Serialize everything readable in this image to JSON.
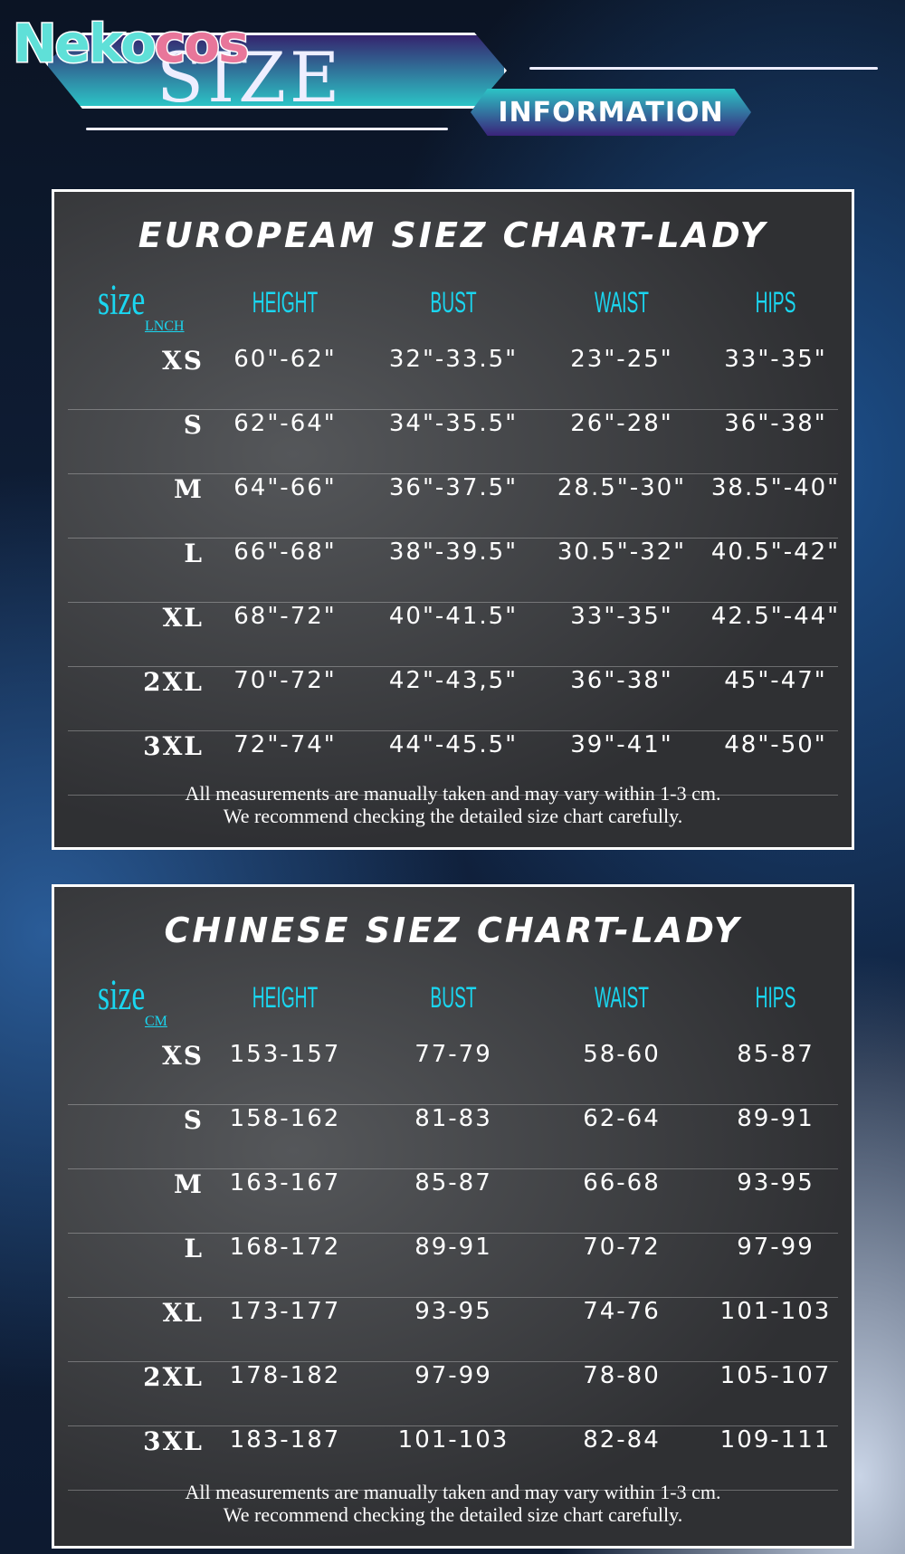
{
  "brand": {
    "logo": "Nekocos"
  },
  "banner": {
    "title": "SIZE",
    "subtitle": "INFORMATION"
  },
  "headers": {
    "size": "size",
    "height": "HEIGHT",
    "bust": "BUST",
    "waist": "WAIST",
    "hips": "HIPS"
  },
  "european": {
    "title": "Europeam Siez Chart-Lady",
    "unit": "LNCH",
    "rows": [
      {
        "size": "XS",
        "height": "60\"-62\"",
        "bust": "32\"-33.5\"",
        "waist": "23\"-25\"",
        "hips": "33\"-35\""
      },
      {
        "size": "S",
        "height": "62\"-64\"",
        "bust": "34\"-35.5\"",
        "waist": "26\"-28\"",
        "hips": "36\"-38\""
      },
      {
        "size": "M",
        "height": "64\"-66\"",
        "bust": "36\"-37.5\"",
        "waist": "28.5\"-30\"",
        "hips": "38.5\"-40\""
      },
      {
        "size": "L",
        "height": "66\"-68\"",
        "bust": "38\"-39.5\"",
        "waist": "30.5\"-32\"",
        "hips": "40.5\"-42\""
      },
      {
        "size": "XL",
        "height": "68\"-72\"",
        "bust": "40\"-41.5\"",
        "waist": "33\"-35\"",
        "hips": "42.5\"-44\""
      },
      {
        "size": "2XL",
        "height": "70\"-72\"",
        "bust": "42\"-43,5\"",
        "waist": "36\"-38\"",
        "hips": "45\"-47\""
      },
      {
        "size": "3XL",
        "height": "72\"-74\"",
        "bust": "44\"-45.5\"",
        "waist": "39\"-41\"",
        "hips": "48\"-50\""
      }
    ],
    "note1": "All measurements are manually taken and may vary within 1-3 cm.",
    "note2": "We recommend checking the detailed size chart carefully."
  },
  "chinese": {
    "title": "Chinese Siez Chart-Lady",
    "unit": "CM",
    "rows": [
      {
        "size": "XS",
        "height": "153-157",
        "bust": "77-79",
        "waist": "58-60",
        "hips": "85-87"
      },
      {
        "size": "S",
        "height": "158-162",
        "bust": "81-83",
        "waist": "62-64",
        "hips": "89-91"
      },
      {
        "size": "M",
        "height": "163-167",
        "bust": "85-87",
        "waist": "66-68",
        "hips": "93-95"
      },
      {
        "size": "L",
        "height": "168-172",
        "bust": "89-91",
        "waist": "70-72",
        "hips": "97-99"
      },
      {
        "size": "XL",
        "height": "173-177",
        "bust": "93-95",
        "waist": "74-76",
        "hips": "101-103"
      },
      {
        "size": "2XL",
        "height": "178-182",
        "bust": "97-99",
        "waist": "78-80",
        "hips": "105-107"
      },
      {
        "size": "3XL",
        "height": "183-187",
        "bust": "101-103",
        "waist": "82-84",
        "hips": "109-111"
      }
    ],
    "note1": "All measurements are manually taken and may vary within 1-3 cm.",
    "note2": "We recommend checking the detailed size chart carefully."
  },
  "colors": {
    "accent": "#1ad6f0",
    "logo_teal": "#5fe0d8",
    "logo_pink": "#e8769a"
  }
}
